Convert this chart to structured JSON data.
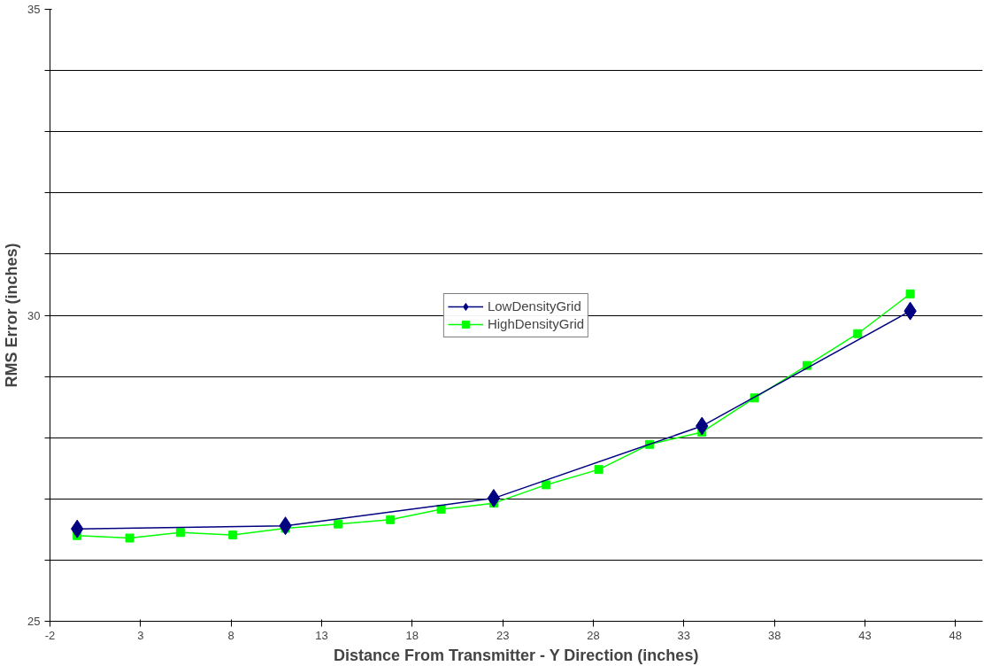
{
  "chart_data": {
    "type": "line",
    "xlabel": "Distance From Transmitter - Y Direction (inches)",
    "ylabel": "RMS Error (inches)",
    "xlim": [
      -2,
      49.5
    ],
    "xticks": [
      -2,
      3,
      8,
      13,
      18,
      23,
      28,
      33,
      38,
      43,
      48
    ],
    "ylim": [
      25,
      35
    ],
    "yticks": [
      25,
      {
        "value": 26,
        "label": null
      },
      {
        "value": 27,
        "label": null
      },
      {
        "value": 28,
        "label": null
      },
      {
        "value": 29,
        "label": null
      },
      30,
      {
        "value": 31,
        "label": null
      },
      {
        "value": 32,
        "label": null
      },
      {
        "value": 33,
        "label": null
      },
      {
        "value": 34,
        "label": null
      },
      35
    ],
    "grid": "y",
    "legend": "center",
    "series": [
      {
        "name": "LowDensityGrid",
        "color": "#000080",
        "marker": "diamond",
        "x": [
          -0.5,
          11,
          22.5,
          34,
          45.5
        ],
        "values": [
          26.51,
          26.56,
          27.01,
          28.19,
          30.07
        ]
      },
      {
        "name": "HighDensityGrid",
        "color": "#00ff00",
        "marker": "square",
        "x": [
          -0.5,
          2.4,
          5.2,
          8.1,
          11,
          13.9,
          16.8,
          19.6,
          22.5,
          25.4,
          28.3,
          31.1,
          34,
          36.9,
          39.8,
          42.6,
          45.5
        ],
        "values": [
          26.4,
          26.36,
          26.45,
          26.41,
          26.52,
          26.59,
          26.66,
          26.83,
          26.93,
          27.23,
          27.48,
          27.89,
          28.09,
          28.65,
          29.18,
          29.7,
          30.35
        ]
      }
    ]
  }
}
